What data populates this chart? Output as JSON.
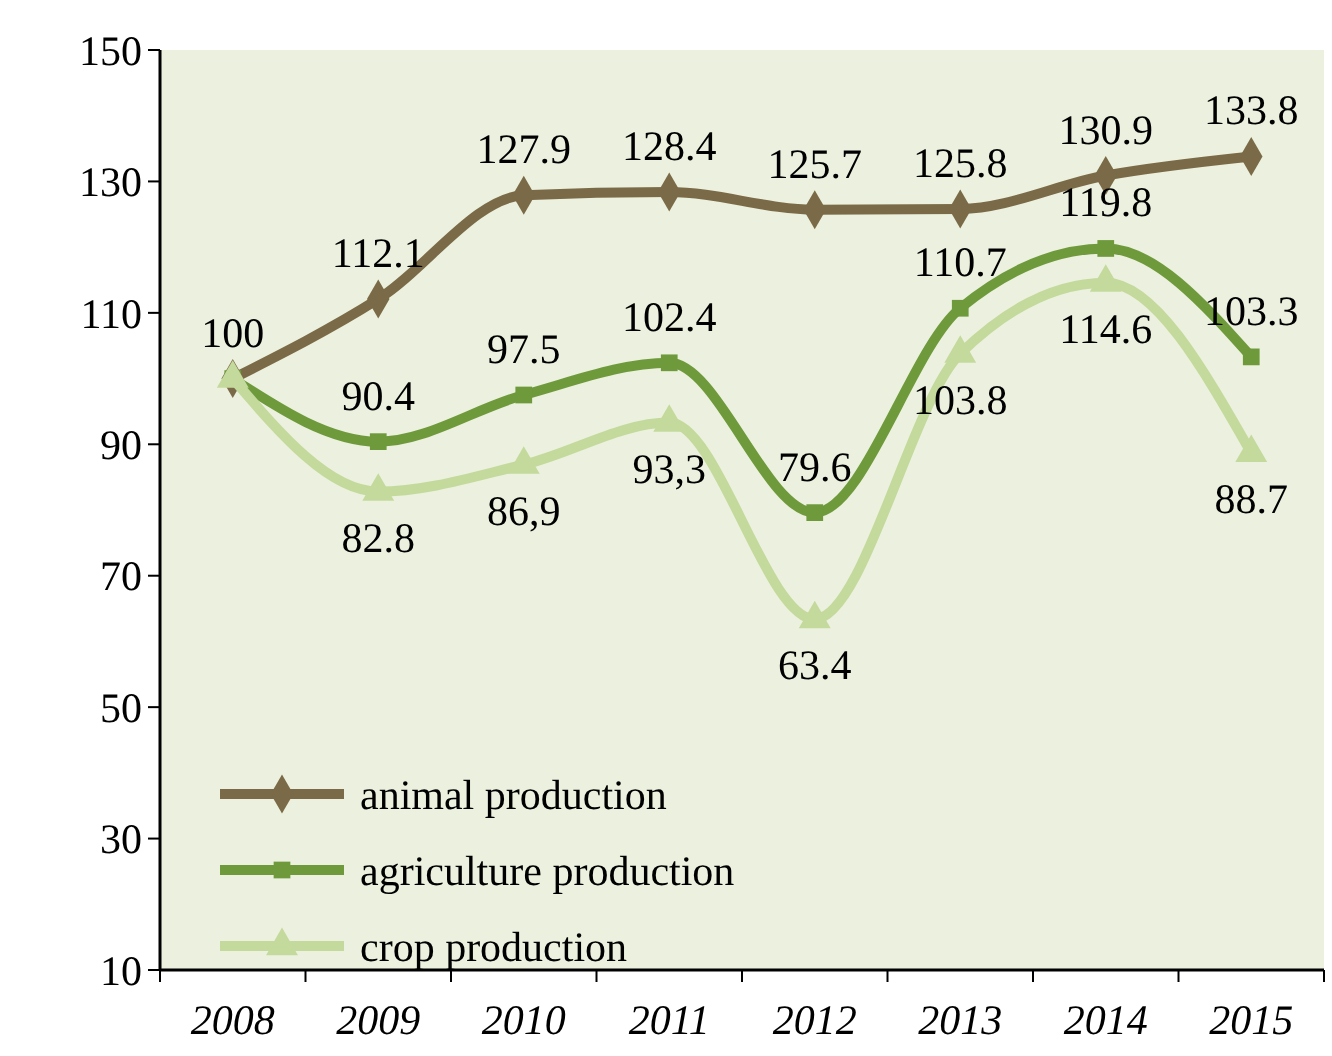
{
  "chart_data": {
    "type": "line",
    "categories": [
      "2008",
      "2009",
      "2010",
      "2011",
      "2012",
      "2013",
      "2014",
      "2015"
    ],
    "ylim": [
      10,
      150
    ],
    "yticks": [
      10,
      30,
      50,
      70,
      90,
      110,
      130,
      150
    ],
    "grid": false,
    "legend": "bottom left",
    "series": [
      {
        "name": "animal production",
        "color": "#7b6a47",
        "marker": "diamond",
        "values": [
          100,
          112.1,
          127.9,
          128.4,
          125.7,
          125.8,
          130.9,
          133.8
        ],
        "value_labels": [
          "100",
          "112.1",
          "127.9",
          "128.4",
          "125.7",
          "125.8",
          "130.9",
          "133.8"
        ]
      },
      {
        "name": "agriculture production",
        "color": "#6f9a3c",
        "marker": "square",
        "values": [
          100,
          90.4,
          97.5,
          102.4,
          79.6,
          110.7,
          119.8,
          103.3
        ],
        "value_labels": [
          null,
          "90.4",
          "97.5",
          "102.4",
          "79.6",
          "110.7",
          "119.8",
          "103.3"
        ]
      },
      {
        "name": "crop production",
        "color": "#c4da9c",
        "marker": "triangle",
        "values": [
          100,
          82.8,
          86.9,
          93.3,
          63.4,
          103.8,
          114.6,
          88.7
        ],
        "value_labels": [
          null,
          "82.8",
          "86,9",
          "93,3",
          "63.4",
          "103.8",
          "114.6",
          "88.7"
        ]
      }
    ]
  }
}
